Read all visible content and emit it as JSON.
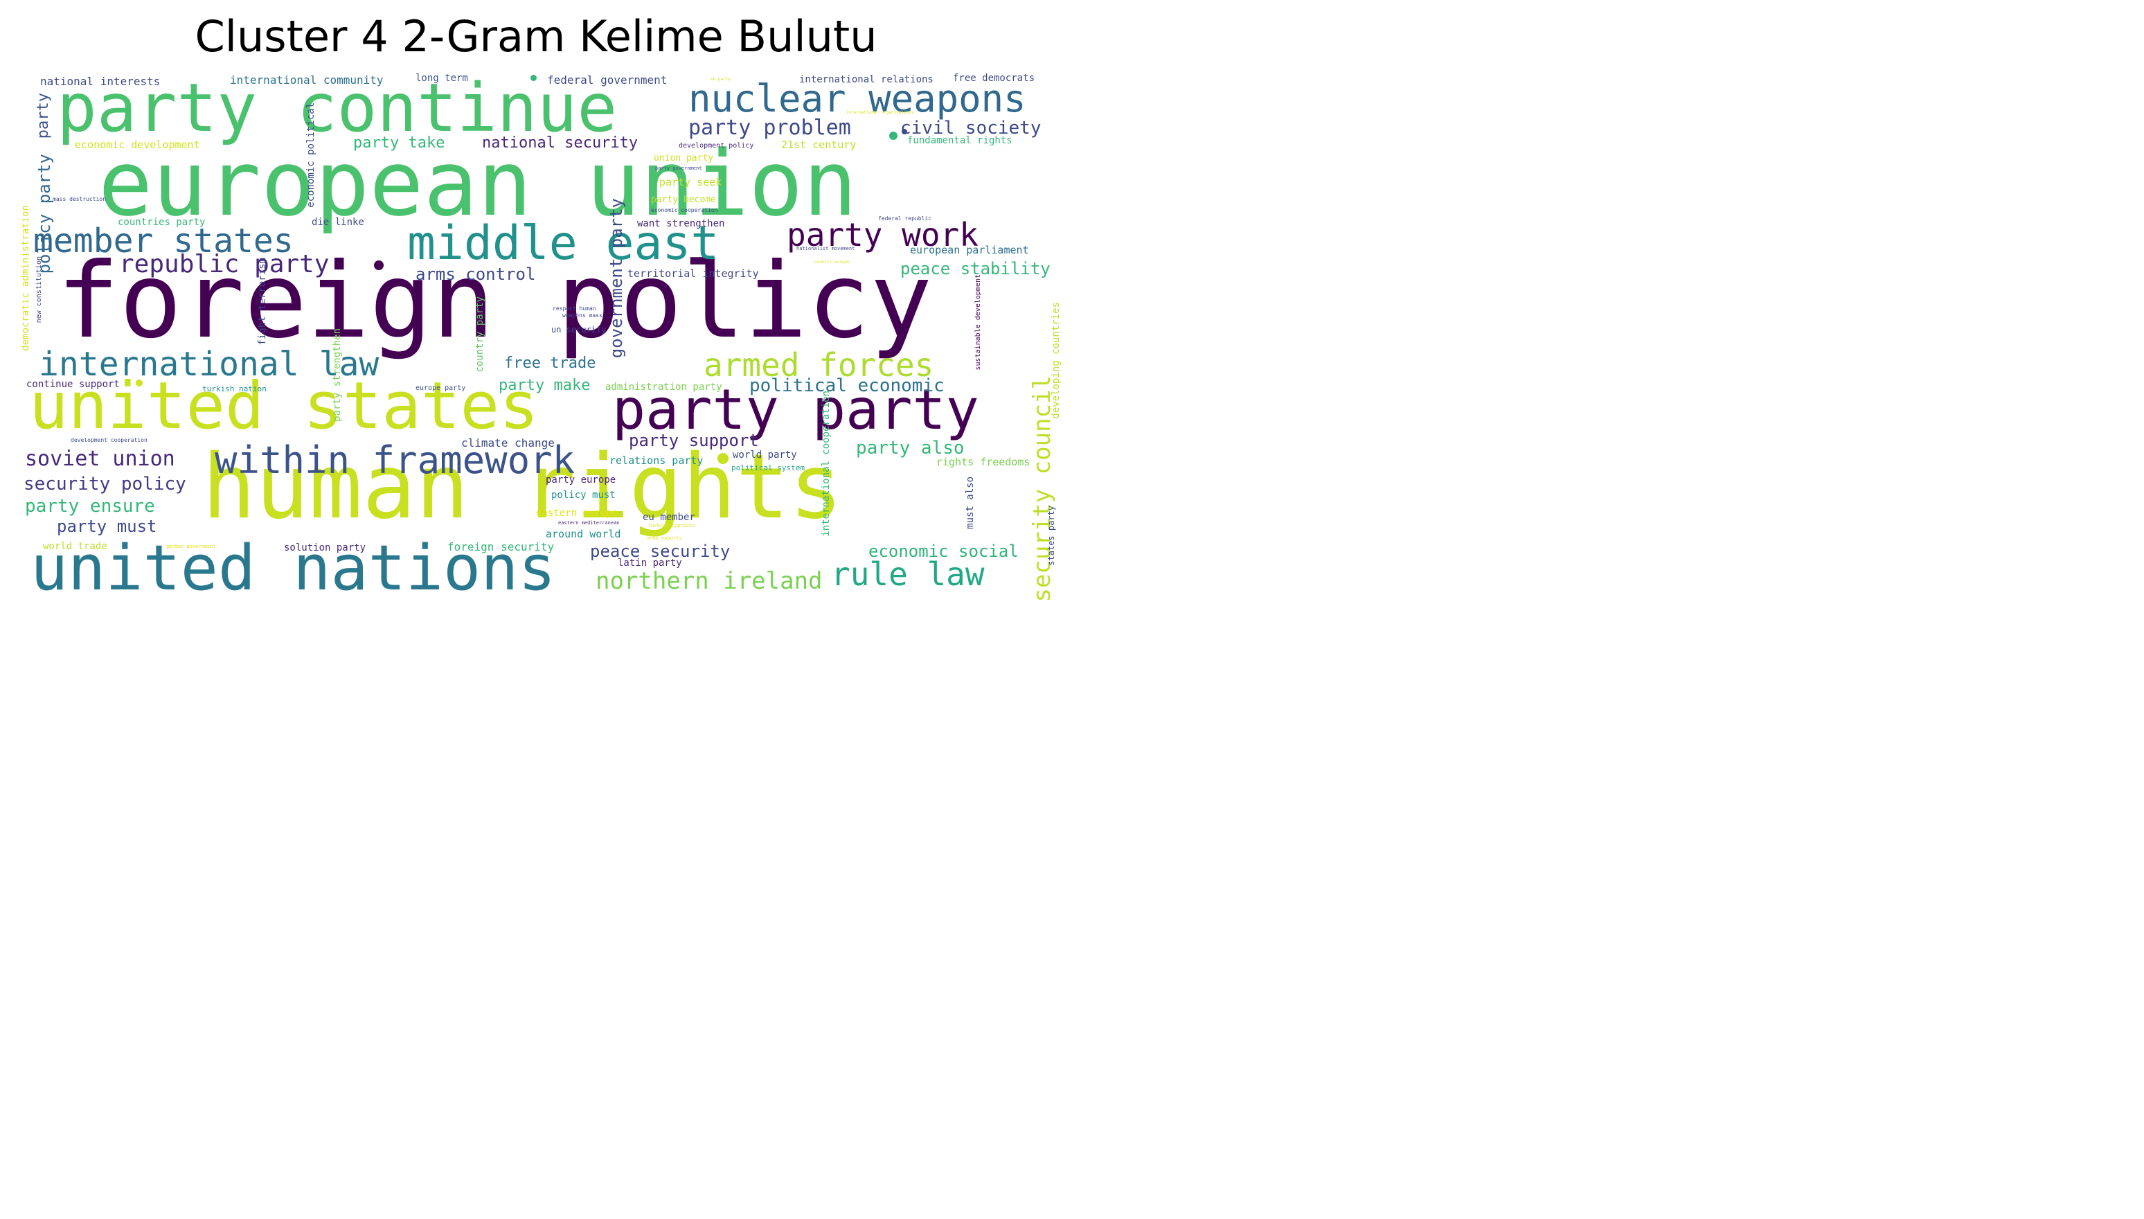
{
  "title": "Cluster 4 2-Gram Kelime Bulutu",
  "colors": {
    "purple": "#440154",
    "indigo": "#3b528b",
    "teal": "#21918c",
    "green": "#5ec962",
    "lime": "#c4dd2a",
    "yellow": "#e2e418"
  },
  "words": [
    {
      "text": "foreign policy",
      "color": "#440154"
    },
    {
      "text": "european union",
      "color": "#4ac16d"
    },
    {
      "text": "human rights",
      "color": "#c8e020"
    },
    {
      "text": "party continue",
      "color": "#4ac16d"
    },
    {
      "text": "united states",
      "color": "#c8e020"
    },
    {
      "text": "united nations",
      "color": "#2a788e"
    },
    {
      "text": "party party",
      "color": "#440154"
    },
    {
      "text": "middle east",
      "color": "#21918c"
    },
    {
      "text": "nuclear weapons",
      "color": "#31688e"
    },
    {
      "text": "within framework",
      "color": "#3b528b"
    },
    {
      "text": "international law",
      "color": "#2a788e"
    },
    {
      "text": "armed forces",
      "color": "#addc30"
    },
    {
      "text": "member states",
      "color": "#31688e"
    },
    {
      "text": "party work",
      "color": "#440154"
    },
    {
      "text": "rule law",
      "color": "#22a884"
    },
    {
      "text": "republic party",
      "color": "#482878"
    },
    {
      "text": "security council",
      "color": "#bddf26"
    },
    {
      "text": "northern ireland",
      "color": "#7ad151"
    },
    {
      "text": "soviet union",
      "color": "#482878"
    },
    {
      "text": "party problem",
      "color": "#3e4989"
    },
    {
      "text": "civil society",
      "color": "#3e4989"
    },
    {
      "text": "political economic",
      "color": "#2c728e"
    },
    {
      "text": "security policy",
      "color": "#443983"
    },
    {
      "text": "party ensure",
      "color": "#35b779"
    },
    {
      "text": "party must",
      "color": "#3e4989"
    },
    {
      "text": "economic social",
      "color": "#2fb47c"
    },
    {
      "text": "peace security",
      "color": "#3e4989"
    },
    {
      "text": "party also",
      "color": "#35b779"
    },
    {
      "text": "peace stability",
      "color": "#35b779"
    },
    {
      "text": "arms control",
      "color": "#3e4989"
    },
    {
      "text": "free trade",
      "color": "#2c728e"
    },
    {
      "text": "government party",
      "color": "#3e4989"
    },
    {
      "text": "policy party",
      "color": "#31688e"
    },
    {
      "text": "party support",
      "color": "#482878"
    },
    {
      "text": "national security",
      "color": "#482878"
    },
    {
      "text": "party take",
      "color": "#35b779"
    },
    {
      "text": "party make",
      "color": "#35b779"
    },
    {
      "text": "party",
      "color": "#3b528b"
    },
    {
      "text": "national interests",
      "color": "#3e4989"
    },
    {
      "text": "international community",
      "color": "#2c728e"
    },
    {
      "text": "long term",
      "color": "#3b528b"
    },
    {
      "text": "federal government",
      "color": "#3e4989"
    },
    {
      "text": "international relations",
      "color": "#3e4989"
    },
    {
      "text": "free democrats",
      "color": "#3e4989"
    },
    {
      "text": "economic development",
      "color": "#d2e21b"
    },
    {
      "text": "fundamental rights",
      "color": "#35b779"
    },
    {
      "text": "21st century",
      "color": "#bddf26"
    },
    {
      "text": "development policy",
      "color": "#482878"
    },
    {
      "text": "union party",
      "color": "#d2e21b"
    },
    {
      "text": "party seek",
      "color": "#c2df23"
    },
    {
      "text": "party become",
      "color": "#c2df23"
    },
    {
      "text": "want strengthen",
      "color": "#482878"
    },
    {
      "text": "european parliament",
      "color": "#2c728e"
    },
    {
      "text": "territorial integrity",
      "color": "#3e4989"
    },
    {
      "text": "countries party",
      "color": "#35b779"
    },
    {
      "text": "die linke",
      "color": "#3e4989"
    },
    {
      "text": "economic political",
      "color": "#3e4989"
    },
    {
      "text": "continue support",
      "color": "#482878"
    },
    {
      "text": "turkish nation",
      "color": "#21918c"
    },
    {
      "text": "europe party",
      "color": "#3b528b"
    },
    {
      "text": "administration party",
      "color": "#7ad151"
    },
    {
      "text": "climate change",
      "color": "#3e4989"
    },
    {
      "text": "relations party",
      "color": "#21918c"
    },
    {
      "text": "world party",
      "color": "#3e4989"
    },
    {
      "text": "rights freedoms",
      "color": "#7ad151"
    },
    {
      "text": "political system",
      "color": "#22a884"
    },
    {
      "text": "party europe",
      "color": "#482878"
    },
    {
      "text": "policy must",
      "color": "#21918c"
    },
    {
      "text": "eastern europe",
      "color": "#e2e418"
    },
    {
      "text": "eu member",
      "color": "#3e4989"
    },
    {
      "text": "around world",
      "color": "#21918c"
    },
    {
      "text": "world trade",
      "color": "#bddf26"
    },
    {
      "text": "solution party",
      "color": "#482878"
    },
    {
      "text": "foreign security",
      "color": "#35b779"
    },
    {
      "text": "latin party",
      "color": "#482878"
    },
    {
      "text": "un security",
      "color": "#3e4989"
    },
    {
      "text": "fight terrorism",
      "color": "#3e4989"
    },
    {
      "text": "country party",
      "color": "#5ec962"
    },
    {
      "text": "party strengthen",
      "color": "#7ad151"
    },
    {
      "text": "democratic administration",
      "color": "#d2e21b"
    },
    {
      "text": "new constitution",
      "color": "#3e4989"
    },
    {
      "text": "international cooperation",
      "color": "#35b779"
    },
    {
      "text": "must also",
      "color": "#3e4989"
    },
    {
      "text": "states party",
      "color": "#3e4989"
    },
    {
      "text": "developing countries",
      "color": "#bddf26"
    },
    {
      "text": "sustainable development",
      "color": "#440154"
    },
    {
      "text": "mass destruction",
      "color": "#3e4989"
    },
    {
      "text": "development cooperation",
      "color": "#3e4989"
    },
    {
      "text": "respect human",
      "color": "#3e4989"
    },
    {
      "text": "weapons mass",
      "color": "#3e4989"
    },
    {
      "text": "eu party",
      "color": "#d2e21b"
    },
    {
      "text": "international organizations",
      "color": "#d2e21b"
    },
    {
      "text": "party government",
      "color": "#3e4989"
    },
    {
      "text": "economic cooperation",
      "color": "#3e4989"
    },
    {
      "text": "federal republic",
      "color": "#3e4989"
    },
    {
      "text": "nationalist movement",
      "color": "#3e4989"
    },
    {
      "text": "council europe",
      "color": "#e2e418"
    },
    {
      "text": "german government",
      "color": "#e2e418"
    },
    {
      "text": "eastern mediterranean",
      "color": "#482878"
    },
    {
      "text": "turkish cypriots",
      "color": "#e2e418"
    },
    {
      "text": "arms exports",
      "color": "#e2e418"
    }
  ]
}
